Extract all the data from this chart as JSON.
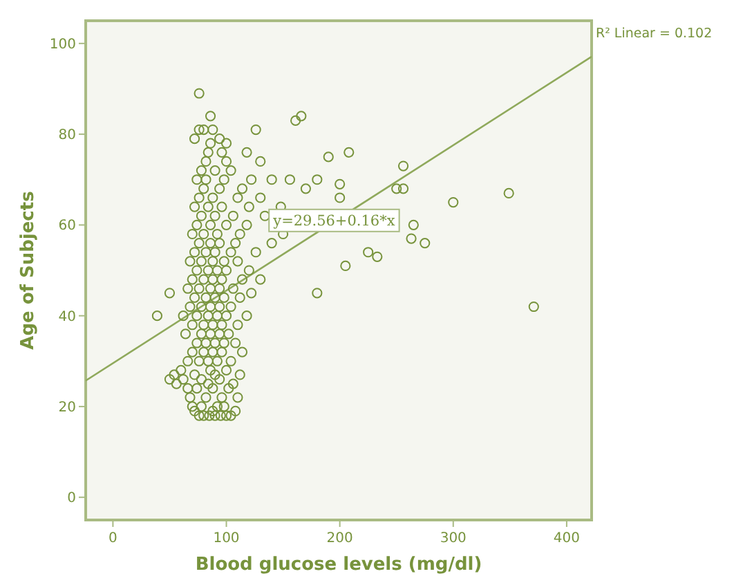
{
  "chart_data": {
    "type": "scatter",
    "xlabel": "Blood glucose levels (mg/dl)",
    "ylabel": "Age of Subjects",
    "xlim": [
      -24,
      422
    ],
    "ylim": [
      -5,
      105
    ],
    "xticks": [
      0,
      100,
      200,
      300,
      400
    ],
    "yticks": [
      0,
      20,
      40,
      60,
      80,
      100
    ],
    "grid": false,
    "marker": "circle",
    "series": [
      {
        "color": "#77933c",
        "x": [
          76,
          80,
          85,
          90,
          95,
          100,
          104,
          72,
          88,
          108,
          70,
          78,
          92,
          98,
          68,
          82,
          96,
          110,
          66,
          74,
          88,
          102,
          56,
          84,
          106,
          50,
          62,
          78,
          94,
          54,
          72,
          90,
          112,
          60,
          86,
          100,
          66,
          76,
          84,
          92,
          104,
          70,
          80,
          88,
          96,
          114,
          74,
          82,
          90,
          98,
          108,
          64,
          78,
          86,
          94,
          102,
          70,
          80,
          88,
          96,
          110,
          39,
          62,
          74,
          84,
          92,
          100,
          118,
          68,
          78,
          86,
          94,
          104,
          72,
          82,
          90,
          98,
          112,
          50,
          122,
          180,
          66,
          76,
          86,
          94,
          106,
          70,
          80,
          88,
          96,
          114,
          130,
          74,
          84,
          92,
          100,
          120,
          68,
          78,
          88,
          98,
          110,
          72,
          82,
          90,
          104,
          126,
          76,
          86,
          94,
          108,
          140,
          70,
          80,
          92,
          112,
          150,
          74,
          86,
          100,
          118,
          78,
          90,
          106,
          134,
          72,
          84,
          96,
          120,
          148,
          76,
          88,
          110,
          130,
          80,
          94,
          114,
          170,
          74,
          82,
          98,
          122,
          140,
          156,
          180,
          78,
          90,
          104,
          82,
          100,
          130,
          84,
          96,
          118,
          86,
          100,
          72,
          94,
          76,
          80,
          88,
          126,
          76,
          86,
          161,
          166,
          208,
          190,
          256,
          250,
          256,
          300,
          349,
          265,
          263,
          275,
          225,
          233,
          205,
          371,
          200,
          200
        ],
        "values": [
          18,
          18,
          18,
          18,
          18,
          18,
          18,
          19,
          19,
          19,
          20,
          20,
          20,
          20,
          22,
          22,
          22,
          22,
          24,
          24,
          24,
          24,
          25,
          25,
          25,
          26,
          26,
          26,
          26,
          27,
          27,
          27,
          27,
          28,
          28,
          28,
          30,
          30,
          30,
          30,
          30,
          32,
          32,
          32,
          32,
          32,
          34,
          34,
          34,
          34,
          34,
          36,
          36,
          36,
          36,
          36,
          38,
          38,
          38,
          38,
          38,
          40,
          40,
          40,
          40,
          40,
          40,
          40,
          42,
          42,
          42,
          42,
          42,
          44,
          44,
          44,
          44,
          44,
          45,
          45,
          45,
          46,
          46,
          46,
          46,
          46,
          48,
          48,
          48,
          48,
          48,
          48,
          50,
          50,
          50,
          50,
          50,
          52,
          52,
          52,
          52,
          52,
          54,
          54,
          54,
          54,
          54,
          56,
          56,
          56,
          56,
          56,
          58,
          58,
          58,
          58,
          58,
          60,
          60,
          60,
          60,
          62,
          62,
          62,
          62,
          64,
          64,
          64,
          64,
          64,
          66,
          66,
          66,
          66,
          68,
          68,
          68,
          68,
          70,
          70,
          70,
          70,
          70,
          70,
          70,
          72,
          72,
          72,
          74,
          74,
          74,
          76,
          76,
          76,
          78,
          78,
          79,
          79,
          81,
          81,
          81,
          81,
          89,
          84,
          83,
          84,
          76,
          75,
          73,
          68,
          68,
          65,
          67,
          60,
          57,
          56,
          54,
          53,
          51,
          42,
          69,
          66
        ]
      },
      {
        "type": "line",
        "marker": "none",
        "color": "#8fa95b",
        "x": [
          -24,
          422
        ],
        "values": [
          25.7,
          97.1
        ]
      }
    ],
    "annotations": [
      "R² Linear = 0.102",
      {
        "text": "y=29.56+0.16*x",
        "x": 195,
        "y": 61
      }
    ]
  }
}
